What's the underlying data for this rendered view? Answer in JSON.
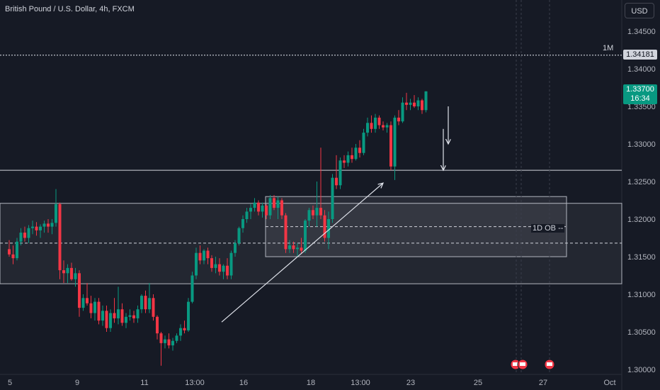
{
  "header": {
    "symbol_title": "British Pound / U.S. Dollar, 4h, FXCM"
  },
  "currency_button": "USD",
  "price_label": {
    "price": "1.33700",
    "countdown": "16:34",
    "color": "#089981"
  },
  "alert_label": {
    "tag": "1M",
    "price": "1.34181",
    "value": 1.34181
  },
  "annotations": {
    "ob_label": "1D OB --"
  },
  "colors": {
    "up": "#089981",
    "down": "#f23645",
    "background": "#161a25",
    "text": "#b2b5be"
  },
  "chart_data": {
    "type": "candlestick",
    "title": "British Pound / U.S. Dollar, 4h, FXCM",
    "ylim": [
      1.2995,
      1.348
    ],
    "yticks": [
      1.3,
      1.305,
      1.31,
      1.315,
      1.32,
      1.325,
      1.33,
      1.335,
      1.34,
      1.345
    ],
    "ytick_labels": [
      "1.30000",
      "1.30500",
      "1.31000",
      "1.31500",
      "1.32000",
      "1.32500",
      "1.33000",
      "1.33500",
      "1.34000",
      "1.34500"
    ],
    "xtick_labels": [
      {
        "label": "5",
        "idx": 0
      },
      {
        "label": "9",
        "idx": 18
      },
      {
        "label": "11",
        "idx": 36
      },
      {
        "label": "13:00",
        "idx": 48
      },
      {
        "label": "16",
        "idx": 60
      },
      {
        "label": "18",
        "idx": 78
      },
      {
        "label": "13:00",
        "idx": 90
      },
      {
        "label": "23",
        "idx": 102
      },
      {
        "label": "25",
        "idx": 120
      },
      {
        "label": "27",
        "idx": 138
      },
      {
        "label": "Oct",
        "idx": 156
      }
    ],
    "candles": [
      [
        1.316,
        1.3172,
        1.315,
        1.3153
      ],
      [
        1.3153,
        1.3165,
        1.314,
        1.3148
      ],
      [
        1.3148,
        1.3175,
        1.3145,
        1.317
      ],
      [
        1.317,
        1.3188,
        1.3165,
        1.3182
      ],
      [
        1.3182,
        1.319,
        1.317,
        1.3175
      ],
      [
        1.3175,
        1.3192,
        1.3168,
        1.3188
      ],
      [
        1.3188,
        1.3198,
        1.318,
        1.319
      ],
      [
        1.319,
        1.3196,
        1.3178,
        1.3185
      ],
      [
        1.3185,
        1.3193,
        1.3175,
        1.319
      ],
      [
        1.319,
        1.3198,
        1.3182,
        1.3194
      ],
      [
        1.3194,
        1.32,
        1.3182,
        1.319
      ],
      [
        1.319,
        1.32,
        1.318,
        1.3195
      ],
      [
        1.3195,
        1.324,
        1.319,
        1.322
      ],
      [
        1.322,
        1.3222,
        1.312,
        1.3132
      ],
      [
        1.3132,
        1.3145,
        1.3115,
        1.3128
      ],
      [
        1.3128,
        1.314,
        1.3115,
        1.3135
      ],
      [
        1.3135,
        1.3142,
        1.3118,
        1.312
      ],
      [
        1.312,
        1.3135,
        1.311,
        1.3128
      ],
      [
        1.3128,
        1.3132,
        1.307,
        1.3082
      ],
      [
        1.3082,
        1.31,
        1.3078,
        1.3095
      ],
      [
        1.3095,
        1.3115,
        1.3085,
        1.3088
      ],
      [
        1.3088,
        1.3098,
        1.3068,
        1.3075
      ],
      [
        1.3075,
        1.3095,
        1.3065,
        1.309
      ],
      [
        1.309,
        1.3095,
        1.306,
        1.3065
      ],
      [
        1.3065,
        1.3085,
        1.3058,
        1.3078
      ],
      [
        1.3078,
        1.3085,
        1.305,
        1.3055
      ],
      [
        1.3055,
        1.308,
        1.305,
        1.3075
      ],
      [
        1.3075,
        1.3095,
        1.3062,
        1.3068
      ],
      [
        1.3068,
        1.311,
        1.306,
        1.308
      ],
      [
        1.308,
        1.3088,
        1.3058,
        1.3062
      ],
      [
        1.3062,
        1.3075,
        1.3055,
        1.307
      ],
      [
        1.307,
        1.308,
        1.3065,
        1.3072
      ],
      [
        1.3072,
        1.3078,
        1.3062,
        1.3068
      ],
      [
        1.3068,
        1.3085,
        1.3062,
        1.308
      ],
      [
        1.308,
        1.31,
        1.3075,
        1.3098
      ],
      [
        1.3098,
        1.3105,
        1.3075,
        1.308
      ],
      [
        1.308,
        1.3115,
        1.3075,
        1.3095
      ],
      [
        1.3095,
        1.31,
        1.3065,
        1.307
      ],
      [
        1.307,
        1.3072,
        1.304,
        1.3048
      ],
      [
        1.3048,
        1.305,
        1.3005,
        1.3035
      ],
      [
        1.3035,
        1.3045,
        1.3028,
        1.304
      ],
      [
        1.304,
        1.3048,
        1.3028,
        1.3032
      ],
      [
        1.3032,
        1.3042,
        1.3025,
        1.3038
      ],
      [
        1.3038,
        1.3048,
        1.3035,
        1.3045
      ],
      [
        1.3045,
        1.306,
        1.3038,
        1.3055
      ],
      [
        1.3055,
        1.3065,
        1.3048,
        1.3052
      ],
      [
        1.3052,
        1.3095,
        1.305,
        1.309
      ],
      [
        1.309,
        1.313,
        1.3088,
        1.3125
      ],
      [
        1.3125,
        1.3162,
        1.312,
        1.3155
      ],
      [
        1.3155,
        1.3165,
        1.314,
        1.3145
      ],
      [
        1.3145,
        1.316,
        1.314,
        1.3158
      ],
      [
        1.3158,
        1.3162,
        1.314,
        1.3148
      ],
      [
        1.3148,
        1.3152,
        1.313,
        1.3135
      ],
      [
        1.3135,
        1.315,
        1.3128,
        1.314
      ],
      [
        1.314,
        1.3148,
        1.3125,
        1.313
      ],
      [
        1.313,
        1.314,
        1.312,
        1.3138
      ],
      [
        1.3138,
        1.3148,
        1.312,
        1.3125
      ],
      [
        1.3125,
        1.3158,
        1.312,
        1.3155
      ],
      [
        1.3155,
        1.3172,
        1.315,
        1.3168
      ],
      [
        1.3168,
        1.319,
        1.3165,
        1.3188
      ],
      [
        1.3188,
        1.3205,
        1.3182,
        1.32
      ],
      [
        1.32,
        1.3215,
        1.3195,
        1.321
      ],
      [
        1.321,
        1.322,
        1.32,
        1.3215
      ],
      [
        1.3215,
        1.3228,
        1.321,
        1.3222
      ],
      [
        1.3222,
        1.3225,
        1.3205,
        1.321
      ],
      [
        1.321,
        1.3222,
        1.3202,
        1.3218
      ],
      [
        1.3218,
        1.322,
        1.32,
        1.3205
      ],
      [
        1.3205,
        1.3232,
        1.32,
        1.3228
      ],
      [
        1.3228,
        1.3232,
        1.3212,
        1.3215
      ],
      [
        1.3215,
        1.323,
        1.32,
        1.3225
      ],
      [
        1.3225,
        1.3228,
        1.32,
        1.3205
      ],
      [
        1.3205,
        1.3208,
        1.3155,
        1.316
      ],
      [
        1.316,
        1.3172,
        1.3155,
        1.3165
      ],
      [
        1.3165,
        1.317,
        1.3155,
        1.316
      ],
      [
        1.316,
        1.3168,
        1.315,
        1.3162
      ],
      [
        1.3162,
        1.3175,
        1.3155,
        1.3158
      ],
      [
        1.3158,
        1.32,
        1.3155,
        1.3198
      ],
      [
        1.3198,
        1.3215,
        1.319,
        1.3212
      ],
      [
        1.3212,
        1.3218,
        1.32,
        1.3205
      ],
      [
        1.3205,
        1.325,
        1.319,
        1.3215
      ],
      [
        1.3215,
        1.3295,
        1.32,
        1.3205
      ],
      [
        1.3205,
        1.3212,
        1.317,
        1.3175
      ],
      [
        1.3175,
        1.321,
        1.316,
        1.32
      ],
      [
        1.32,
        1.326,
        1.3195,
        1.3255
      ],
      [
        1.3255,
        1.3285,
        1.324,
        1.3245
      ],
      [
        1.3245,
        1.3282,
        1.324,
        1.3278
      ],
      [
        1.3278,
        1.3285,
        1.3268,
        1.3275
      ],
      [
        1.3275,
        1.329,
        1.327,
        1.3285
      ],
      [
        1.3285,
        1.3295,
        1.3275,
        1.328
      ],
      [
        1.328,
        1.33,
        1.3278,
        1.3295
      ],
      [
        1.3295,
        1.3305,
        1.3282,
        1.3288
      ],
      [
        1.3288,
        1.332,
        1.3285,
        1.3315
      ],
      [
        1.3315,
        1.3335,
        1.331,
        1.3328
      ],
      [
        1.3328,
        1.3338,
        1.3315,
        1.332
      ],
      [
        1.332,
        1.334,
        1.3315,
        1.3335
      ],
      [
        1.3335,
        1.3338,
        1.332,
        1.3325
      ],
      [
        1.3325,
        1.333,
        1.3318,
        1.3322
      ],
      [
        1.3322,
        1.3328,
        1.3315,
        1.3325
      ],
      [
        1.3325,
        1.333,
        1.3265,
        1.327
      ],
      [
        1.327,
        1.3338,
        1.3252,
        1.3335
      ],
      [
        1.3335,
        1.3345,
        1.3325,
        1.333
      ],
      [
        1.333,
        1.3362,
        1.3328,
        1.3355
      ],
      [
        1.3355,
        1.3368,
        1.3345,
        1.3352
      ],
      [
        1.3352,
        1.336,
        1.3345,
        1.3355
      ],
      [
        1.3355,
        1.3365,
        1.3348,
        1.335
      ],
      [
        1.335,
        1.3362,
        1.3345,
        1.3358
      ],
      [
        1.3358,
        1.336,
        1.334,
        1.3345
      ],
      [
        1.3345,
        1.337,
        1.3342,
        1.337
      ]
    ],
    "horizontal_lines": [
      1.3265
    ],
    "order_block_zone": {
      "top": 1.3221,
      "bottom": 1.3114
    },
    "ob_1d_box": {
      "top": 1.323,
      "bottom": 1.315,
      "idx_start": 72,
      "idx_end": 153
    },
    "ob_mid_lines": [
      1.319,
      1.3168
    ],
    "trendline": {
      "idx_start": 60,
      "price_start": 1.3063,
      "idx_end": 106,
      "price_end": 1.3248
    },
    "arrows": [
      {
        "idx": 125,
        "price_start": 1.335,
        "price_end": 1.33
      },
      {
        "idx": 123,
        "price_start": 1.332,
        "price_end": 1.3265
      }
    ],
    "event_markers": [
      {
        "idx": 142
      },
      {
        "idx": 144
      },
      {
        "idx": 153
      }
    ],
    "dashed_verticals": [
      144,
      148,
      153
    ]
  }
}
